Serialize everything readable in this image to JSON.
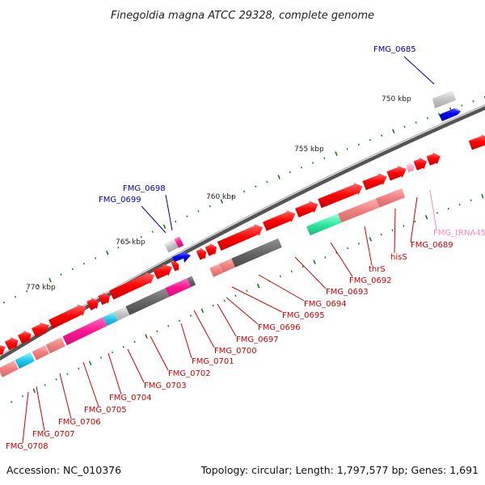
{
  "title": "Finegoldia magna ATCC 29328, complete genome",
  "footer": {
    "accession": "Accession: NC_010376",
    "summary": "Topology: circular; Length: 1,797,577 bp; Genes: 1,691"
  },
  "scale_labels": [
    "750 kbp",
    "755 kbp",
    "760 kbp",
    "765 kbp",
    "770 kbp"
  ],
  "gene_labels": {
    "FMG_0685": "FMG_0685",
    "FMG_0698": "FMG_0698",
    "FMG_0699": "FMG_0699",
    "FMG_tRNA45": "FMG_tRNA45",
    "FMG_0689": "FMG_0689",
    "hisS": "hisS",
    "thrS": "thrS",
    "FMG_0692": "FMG_0692",
    "FMG_0693": "FMG_0693",
    "FMG_0694": "FMG_0694",
    "FMG_0695": "FMG_0695",
    "FMG_0696": "FMG_0696",
    "FMG_0697": "FMG_0697",
    "FMG_0700": "FMG_0700",
    "FMG_0701": "FMG_0701",
    "FMG_0702": "FMG_0702",
    "FMG_0703": "FMG_0703",
    "FMG_0704": "FMG_0704",
    "FMG_0705": "FMG_0705",
    "FMG_0706": "FMG_0706",
    "FMG_0707": "FMG_0707",
    "FMG_0708": "FMG_0708"
  },
  "colors": {
    "cds": "#ff0000",
    "cds_light": "#f08080",
    "blue_feature": "#0000ee",
    "trna": "#ff88c0",
    "backbone": "#777777",
    "ticks": "#1a7a1a",
    "label_red": "#cc0000",
    "label_blue": "#0000aa"
  }
}
